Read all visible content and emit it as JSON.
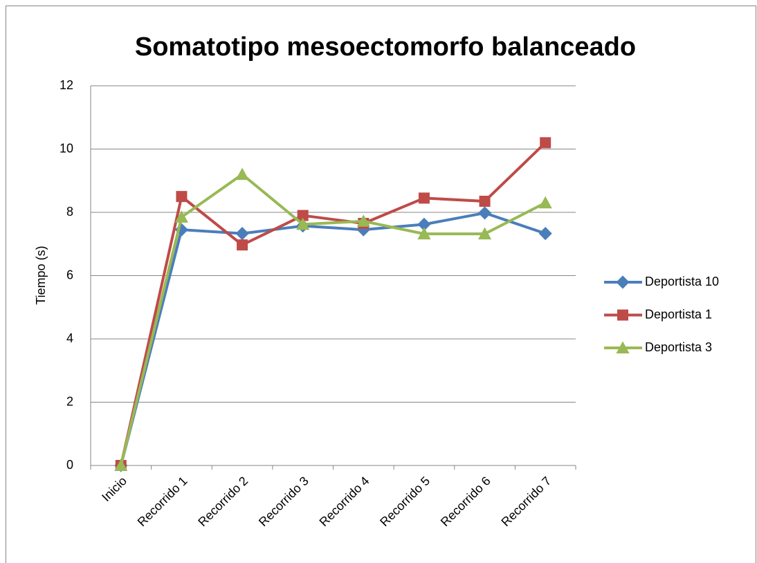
{
  "chart_data": {
    "type": "line",
    "title": "Somatotipo mesoectomorfo balanceado",
    "y_label": "Tiempo (s)",
    "categories": [
      "Inicio",
      "Recorrido 1",
      "Recorrido 2",
      "Recorrido 3",
      "Recorrido 4",
      "Recorrido 5",
      "Recorrido 6",
      "Recorrido 7"
    ],
    "series": [
      {
        "name": "Deportista 10",
        "color": "#4a7ebb",
        "marker": "diamond",
        "values": [
          0,
          7.45,
          7.33,
          7.57,
          7.45,
          7.62,
          7.98,
          7.33
        ]
      },
      {
        "name": "Deportista 1",
        "color": "#be4b48",
        "marker": "square",
        "values": [
          0,
          8.5,
          6.97,
          7.9,
          7.65,
          8.45,
          8.35,
          10.2
        ]
      },
      {
        "name": "Deportista 3",
        "color": "#98b954",
        "marker": "triangle",
        "values": [
          0,
          7.85,
          9.2,
          7.62,
          7.72,
          7.32,
          7.32,
          8.3
        ]
      }
    ],
    "ylim": [
      0,
      12
    ],
    "yticks": [
      0,
      2,
      4,
      6,
      8,
      10,
      12
    ],
    "grid": true,
    "legend": "right"
  }
}
